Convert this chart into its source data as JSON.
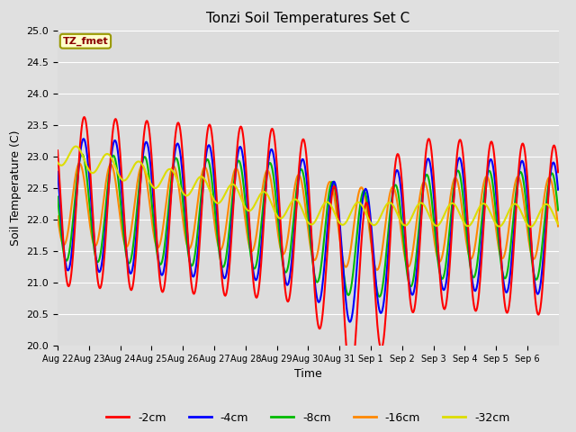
{
  "title": "Tonzi Soil Temperatures Set C",
  "xlabel": "Time",
  "ylabel": "Soil Temperature (C)",
  "ylim": [
    20.0,
    25.0
  ],
  "yticks": [
    20.0,
    20.5,
    21.0,
    21.5,
    22.0,
    22.5,
    23.0,
    23.5,
    24.0,
    24.5,
    25.0
  ],
  "series_colors": {
    "-2cm": "#ff0000",
    "-4cm": "#0000ff",
    "-8cm": "#00bb00",
    "-16cm": "#ff8800",
    "-32cm": "#dddd00"
  },
  "legend_label": "TZ_fmet",
  "figure_bg": "#e0e0e0",
  "axes_bg": "#dcdcdc",
  "x_tick_labels": [
    "Aug 22",
    "Aug 23",
    "Aug 24",
    "Aug 25",
    "Aug 26",
    "Aug 27",
    "Aug 28",
    "Aug 29",
    "Aug 30",
    "Aug 31",
    "Sep 1",
    "Sep 2",
    "Sep 3",
    "Sep 4",
    "Sep 5",
    "Sep 6"
  ]
}
